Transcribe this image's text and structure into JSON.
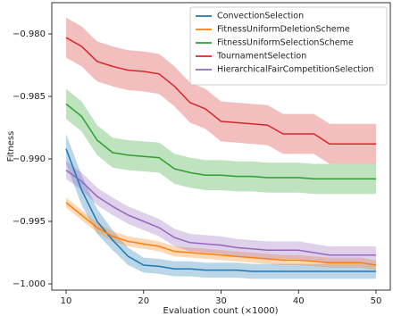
{
  "chart_data": {
    "type": "line",
    "xlabel": "Evaluation count (×1000)",
    "ylabel": "Fitness",
    "x": [
      10,
      12,
      14,
      16,
      18,
      20,
      22,
      24,
      26,
      28,
      30,
      32,
      34,
      36,
      38,
      40,
      42,
      44,
      46,
      48,
      50
    ],
    "xlim": [
      8.15,
      51.85
    ],
    "xticks": [
      10,
      20,
      30,
      40,
      50
    ],
    "ylim": [
      -1.0005,
      -0.9775
    ],
    "yticks": [
      {
        "value": -1.0,
        "label": "−1.000"
      },
      {
        "value": -0.995,
        "label": "−0.995"
      },
      {
        "value": -0.99,
        "label": "−0.990"
      },
      {
        "value": -0.985,
        "label": "−0.985"
      },
      {
        "value": -0.98,
        "label": "−0.980"
      }
    ],
    "grid": false,
    "legend": "upper right",
    "band_opacity": 0.3,
    "series": [
      {
        "name": "ConvectionSelection",
        "color": "#1f77b4",
        "values": [
          -0.9892,
          -0.9925,
          -0.995,
          -0.9965,
          -0.9978,
          -0.9985,
          -0.9986,
          -0.9988,
          -0.9988,
          -0.9989,
          -0.9989,
          -0.9989,
          -0.999,
          -0.999,
          -0.999,
          -0.999,
          -0.999,
          -0.999,
          -0.999,
          -0.999,
          -0.999
        ],
        "lower": [
          -0.9904,
          -0.9937,
          -0.996,
          -0.9973,
          -0.9985,
          -0.9991,
          -0.9992,
          -0.9994,
          -0.9994,
          -0.9995,
          -0.9995,
          -0.9995,
          -0.9996,
          -0.9996,
          -0.9996,
          -0.9996,
          -0.9996,
          -0.9996,
          -0.9996,
          -0.9996,
          -0.9996
        ],
        "upper": [
          -0.988,
          -0.9913,
          -0.994,
          -0.9957,
          -0.9971,
          -0.9979,
          -0.998,
          -0.9982,
          -0.9982,
          -0.9983,
          -0.9983,
          -0.9983,
          -0.9984,
          -0.9984,
          -0.9984,
          -0.9984,
          -0.9984,
          -0.9984,
          -0.9984,
          -0.9984,
          -0.9984
        ]
      },
      {
        "name": "FitnessUniformDeletionScheme",
        "color": "#ff7f0e",
        "values": [
          -0.9935,
          -0.9945,
          -0.9955,
          -0.9962,
          -0.9966,
          -0.9968,
          -0.997,
          -0.9974,
          -0.9975,
          -0.9976,
          -0.9977,
          -0.9978,
          -0.9979,
          -0.998,
          -0.9981,
          -0.9981,
          -0.9982,
          -0.9983,
          -0.9983,
          -0.9983,
          -0.9985
        ],
        "lower": [
          -0.9939,
          -0.9949,
          -0.9959,
          -0.9966,
          -0.997,
          -0.9972,
          -0.9974,
          -0.9978,
          -0.9979,
          -0.998,
          -0.9981,
          -0.9982,
          -0.9983,
          -0.9984,
          -0.9985,
          -0.9985,
          -0.9986,
          -0.9987,
          -0.9987,
          -0.9987,
          -0.9989
        ],
        "upper": [
          -0.9931,
          -0.9941,
          -0.9951,
          -0.9958,
          -0.9962,
          -0.9964,
          -0.9966,
          -0.997,
          -0.9971,
          -0.9972,
          -0.9973,
          -0.9974,
          -0.9975,
          -0.9976,
          -0.9977,
          -0.9977,
          -0.9978,
          -0.9979,
          -0.9979,
          -0.9979,
          -0.9981
        ]
      },
      {
        "name": "FitnessUniformSelectionScheme",
        "color": "#2ca02c",
        "values": [
          -0.9856,
          -0.9866,
          -0.9885,
          -0.9895,
          -0.9897,
          -0.9898,
          -0.9899,
          -0.9908,
          -0.9911,
          -0.9913,
          -0.9913,
          -0.9914,
          -0.9914,
          -0.9915,
          -0.9915,
          -0.9915,
          -0.9916,
          -0.9916,
          -0.9916,
          -0.9916,
          -0.9916
        ],
        "lower": [
          -0.9868,
          -0.9878,
          -0.9897,
          -0.9907,
          -0.9909,
          -0.991,
          -0.9911,
          -0.992,
          -0.9923,
          -0.9925,
          -0.9925,
          -0.9926,
          -0.9926,
          -0.9927,
          -0.9927,
          -0.9927,
          -0.9928,
          -0.9928,
          -0.9928,
          -0.9928,
          -0.9928
        ],
        "upper": [
          -0.9844,
          -0.9854,
          -0.9873,
          -0.9883,
          -0.9885,
          -0.9886,
          -0.9887,
          -0.9896,
          -0.9899,
          -0.9901,
          -0.9901,
          -0.9902,
          -0.9902,
          -0.9903,
          -0.9903,
          -0.9903,
          -0.9904,
          -0.9904,
          -0.9904,
          -0.9904,
          -0.9904
        ]
      },
      {
        "name": "TournamentSelection",
        "color": "#d62728",
        "values": [
          -0.9803,
          -0.981,
          -0.9822,
          -0.9826,
          -0.9829,
          -0.983,
          -0.9832,
          -0.9842,
          -0.9855,
          -0.986,
          -0.987,
          -0.9871,
          -0.9872,
          -0.9873,
          -0.988,
          -0.988,
          -0.988,
          -0.9888,
          -0.9888,
          -0.9888,
          -0.9888
        ],
        "lower": [
          -0.9819,
          -0.9826,
          -0.9838,
          -0.9842,
          -0.9845,
          -0.9846,
          -0.9848,
          -0.9858,
          -0.9871,
          -0.9876,
          -0.9886,
          -0.9887,
          -0.9888,
          -0.9889,
          -0.9896,
          -0.9896,
          -0.9896,
          -0.9904,
          -0.9904,
          -0.9904,
          -0.9904
        ],
        "upper": [
          -0.9787,
          -0.9794,
          -0.9806,
          -0.981,
          -0.9813,
          -0.9814,
          -0.9816,
          -0.9826,
          -0.9839,
          -0.9844,
          -0.9854,
          -0.9855,
          -0.9856,
          -0.9857,
          -0.9864,
          -0.9864,
          -0.9864,
          -0.9872,
          -0.9872,
          -0.9872,
          -0.9872
        ]
      },
      {
        "name": "HierarchicalFairCompetitionSelection",
        "color": "#9467bd",
        "values": [
          -0.9909,
          -0.9918,
          -0.993,
          -0.9938,
          -0.9945,
          -0.995,
          -0.9955,
          -0.9963,
          -0.9967,
          -0.9968,
          -0.9969,
          -0.9971,
          -0.9972,
          -0.9973,
          -0.9973,
          -0.9973,
          -0.9975,
          -0.9977,
          -0.9977,
          -0.9977,
          -0.9977
        ],
        "lower": [
          -0.9916,
          -0.9925,
          -0.9937,
          -0.9945,
          -0.9952,
          -0.9957,
          -0.9962,
          -0.997,
          -0.9974,
          -0.9975,
          -0.9976,
          -0.9978,
          -0.9979,
          -0.998,
          -0.998,
          -0.998,
          -0.9982,
          -0.9984,
          -0.9984,
          -0.9984,
          -0.9984
        ],
        "upper": [
          -0.9902,
          -0.9911,
          -0.9923,
          -0.9931,
          -0.9938,
          -0.9943,
          -0.9948,
          -0.9956,
          -0.996,
          -0.9961,
          -0.9962,
          -0.9964,
          -0.9965,
          -0.9966,
          -0.9966,
          -0.9966,
          -0.9968,
          -0.997,
          -0.997,
          -0.997,
          -0.997
        ]
      }
    ]
  }
}
